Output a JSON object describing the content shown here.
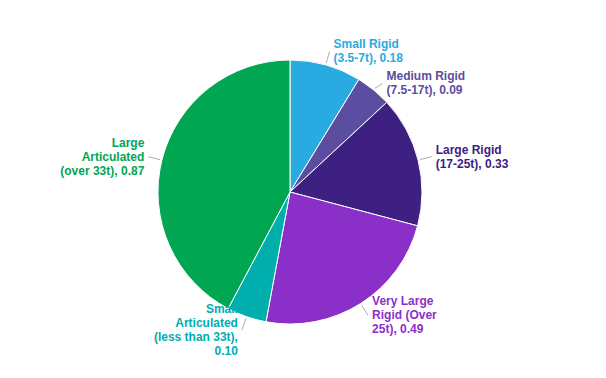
{
  "chart_data": {
    "type": "pie",
    "categories": [
      "Small Rigid\n(3.5-7t), 0.18",
      "Medium Rigid\n(7.5-17t), 0.09",
      "Large Rigid\n(17-25t), 0.33",
      "Very Large\nRigid (Over\n25t), 0.49",
      "Small\nArticulated\n(less than 33t),\n0.10",
      "Large\nArticulated\n(over 33t), 0.87"
    ],
    "values": [
      0.18,
      0.09,
      0.33,
      0.49,
      0.1,
      0.87
    ],
    "colors": [
      "#29ABE2",
      "#5B4EA0",
      "#3D2082",
      "#8B2FC9",
      "#00AEAE",
      "#00A651"
    ]
  }
}
